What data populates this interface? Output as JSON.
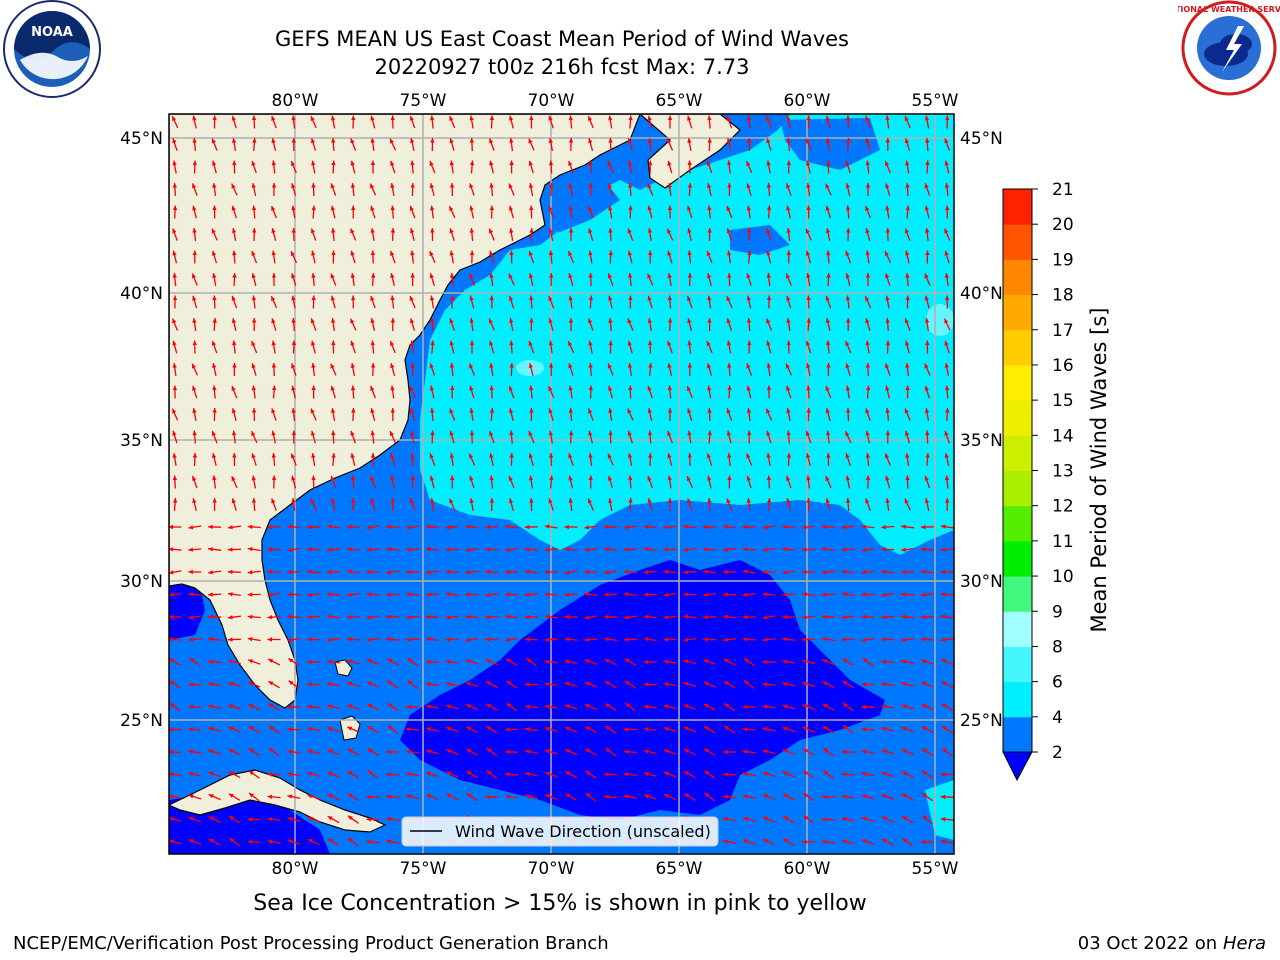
{
  "header": {
    "title_line1": "GEFS MEAN US East Coast Mean Period of Wind Waves",
    "title_line2": "20220927 t00z 216h fcst   Max: 7.73"
  },
  "map": {
    "lon_labels": [
      "80°W",
      "75°W",
      "70°W",
      "65°W",
      "60°W",
      "55°W"
    ],
    "lat_labels": [
      "45°N",
      "40°N",
      "35°N",
      "30°N",
      "25°N"
    ],
    "legend_label": "Wind Wave Direction (unscaled)",
    "arrow_color": "#ff0000",
    "land_color": "#efefdc",
    "ocean_colors": {
      "level_0_2": "#0000ff",
      "level_2_4": "#0077ff",
      "level_4_6": "#00eeff"
    }
  },
  "colorbar": {
    "label": "Mean Period of Wind Waves [s]",
    "ticks": [
      "2",
      "4",
      "6",
      "8",
      "9",
      "10",
      "11",
      "12",
      "13",
      "14",
      "15",
      "16",
      "17",
      "18",
      "19",
      "20",
      "21"
    ],
    "colors": [
      "#0077ff",
      "#00eeff",
      "#44f7ff",
      "#a0ffff",
      "#44f77e",
      "#00ee00",
      "#55ee00",
      "#aaee00",
      "#ccee00",
      "#eeee00",
      "#ffee00",
      "#ffcc00",
      "#ffaa00",
      "#ff8800",
      "#ff5500",
      "#ff2200",
      "#ff0000"
    ],
    "under_color": "#0000ff"
  },
  "footer": {
    "ice_note": "Sea Ice Concentration > 15% is shown in pink to yellow",
    "credit": "NCEP/EMC/Verification Post Processing Product Generation Branch",
    "date_prefix": "03 Oct 2022 on ",
    "date_machine": "Hera"
  },
  "logos": {
    "left": "NOAA",
    "right": "NATIONAL WEATHER SERVICE"
  }
}
